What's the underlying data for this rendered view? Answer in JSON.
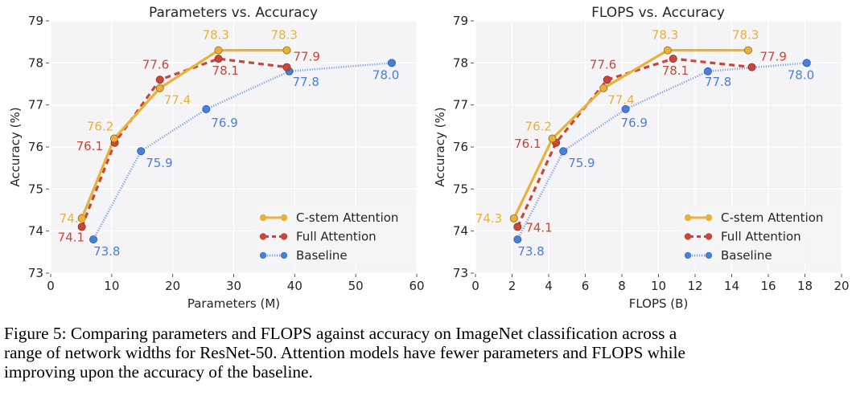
{
  "chart_data": [
    {
      "type": "line",
      "title": "Parameters vs. Accuracy",
      "xlabel": "Parameters (M)",
      "ylabel": "Accuracy (%)",
      "xlim": [
        0,
        60
      ],
      "ylim": [
        73,
        79
      ],
      "xticks": [
        0,
        10,
        20,
        30,
        40,
        50,
        60
      ],
      "yticks": [
        73,
        74,
        75,
        76,
        77,
        78,
        79
      ],
      "grid": true,
      "legend": "bottom-right",
      "series": [
        {
          "name": "C-stem Attention",
          "style": "solid",
          "color": "#E8B23A",
          "x": [
            5.1,
            10.4,
            17.9,
            27.5,
            38.7
          ],
          "y": [
            74.3,
            76.2,
            77.4,
            78.3,
            78.3
          ],
          "labels": [
            "74.3",
            "76.2",
            "77.4",
            "78.3",
            "78.3"
          ]
        },
        {
          "name": "Full Attention",
          "style": "dashed",
          "color": "#C9463A",
          "x": [
            5.1,
            10.5,
            17.9,
            27.5,
            38.7
          ],
          "y": [
            74.1,
            76.1,
            77.6,
            78.1,
            77.9
          ],
          "labels": [
            "74.1",
            "76.1",
            "77.6",
            "78.1",
            "77.9"
          ]
        },
        {
          "name": "Baseline",
          "style": "dotted",
          "color": "#4A7FD9",
          "x": [
            7.0,
            14.8,
            25.5,
            39.1,
            55.9
          ],
          "y": [
            73.8,
            75.9,
            76.9,
            77.8,
            78.0
          ],
          "labels": [
            "73.8",
            "75.9",
            "76.9",
            "77.8",
            "78.0"
          ]
        }
      ]
    },
    {
      "type": "line",
      "title": "FLOPS vs. Accuracy",
      "xlabel": "FLOPS (B)",
      "ylabel": "Accuracy (%)",
      "xlim": [
        0,
        20
      ],
      "ylim": [
        73,
        79
      ],
      "xticks": [
        0,
        2,
        4,
        6,
        8,
        10,
        12,
        14,
        16,
        18,
        20
      ],
      "yticks": [
        73,
        74,
        75,
        76,
        77,
        78,
        79
      ],
      "grid": true,
      "legend": "bottom-right",
      "series": [
        {
          "name": "C-stem Attention",
          "style": "solid",
          "color": "#E8B23A",
          "x": [
            2.1,
            4.2,
            7.0,
            10.5,
            14.9
          ],
          "y": [
            74.3,
            76.2,
            77.4,
            78.3,
            78.3
          ],
          "labels": [
            "74.3",
            "76.2",
            "77.4",
            "78.3",
            "78.3"
          ]
        },
        {
          "name": "Full Attention",
          "style": "dashed",
          "color": "#C9463A",
          "x": [
            2.3,
            4.4,
            7.2,
            10.8,
            15.1
          ],
          "y": [
            74.1,
            76.1,
            77.6,
            78.1,
            77.9
          ],
          "labels": [
            "74.1",
            "76.1",
            "77.6",
            "78.1",
            "77.9"
          ]
        },
        {
          "name": "Baseline",
          "style": "dotted",
          "color": "#4A7FD9",
          "x": [
            2.3,
            4.8,
            8.2,
            12.7,
            18.1
          ],
          "y": [
            73.8,
            75.9,
            76.9,
            77.8,
            78.0
          ],
          "labels": [
            "73.8",
            "75.9",
            "76.9",
            "77.8",
            "78.0"
          ]
        }
      ]
    }
  ],
  "caption": {
    "lines": [
      "Figure 5: Comparing parameters and FLOPS against accuracy on ImageNet classification across a",
      "range of network widths for ResNet-50. Attention models have fewer parameters and FLOPS while",
      "improving upon the accuracy of the baseline."
    ]
  }
}
